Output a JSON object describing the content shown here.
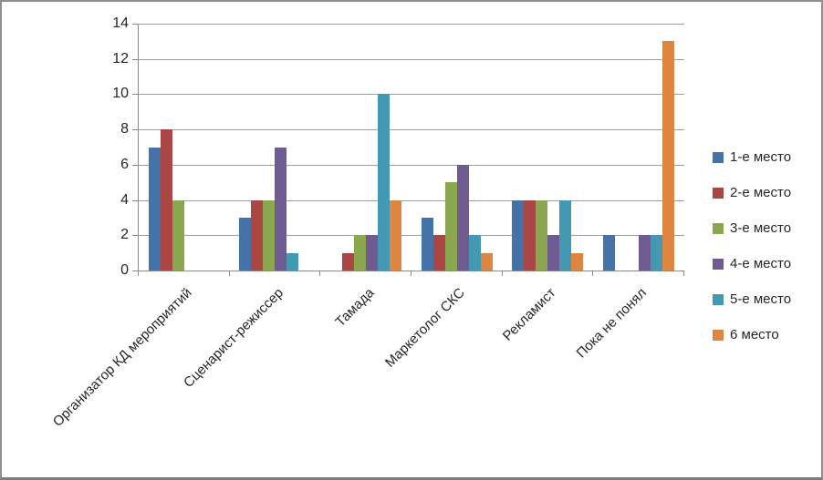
{
  "chart_data": {
    "type": "bar",
    "title": "",
    "xlabel": "",
    "ylabel": "",
    "categories": [
      "Организатор КД мероприятий",
      "Сценарист-режиссер",
      "Тамада",
      "Маркетолог СКС",
      "Рекламист",
      "Пока не понял"
    ],
    "series": [
      {
        "name": "1-е место",
        "color": "#4573A7",
        "values": [
          7,
          3,
          0,
          3,
          4,
          2
        ]
      },
      {
        "name": "2-е место",
        "color": "#AA4744",
        "values": [
          8,
          4,
          1,
          2,
          4,
          0
        ]
      },
      {
        "name": "3-е место",
        "color": "#8AA64F",
        "values": [
          4,
          4,
          2,
          5,
          4,
          0
        ]
      },
      {
        "name": "4-е место",
        "color": "#705A92",
        "values": [
          0,
          7,
          2,
          6,
          2,
          2
        ]
      },
      {
        "name": "5-е место",
        "color": "#4499B2",
        "values": [
          0,
          1,
          10,
          2,
          4,
          2
        ]
      },
      {
        "name": "6 место",
        "color": "#DE8641",
        "values": [
          0,
          0,
          4,
          1,
          1,
          13
        ]
      }
    ],
    "ylim": [
      0,
      14
    ],
    "ytick_step": 2,
    "ytick_labels": [
      "0",
      "2",
      "4",
      "6",
      "8",
      "10",
      "12",
      "14"
    ],
    "grid": true,
    "legend_position": "right",
    "colors": {
      "axis": "#8A8A8A",
      "gridline": "#9C9C9C",
      "text": "#262626",
      "frame_border": "#8E8E8E",
      "background": "#FFFFFF"
    }
  }
}
